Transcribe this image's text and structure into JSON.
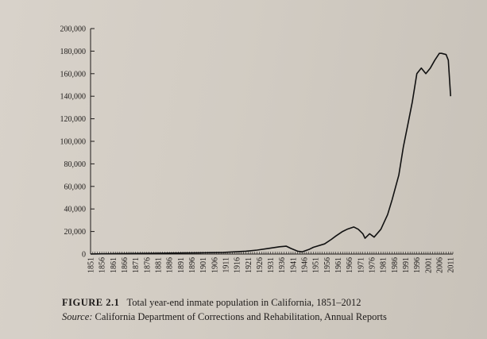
{
  "chart_data": {
    "type": "line",
    "title": "",
    "xlabel": "",
    "ylabel": "",
    "ylim": [
      0,
      200000
    ],
    "xlim": [
      1851,
      2012
    ],
    "grid": false,
    "legend": "none",
    "line_color": "#111111",
    "y_ticks": [
      0,
      20000,
      40000,
      60000,
      80000,
      100000,
      120000,
      140000,
      160000,
      180000,
      200000
    ],
    "y_tick_labels": [
      "0",
      "20,000",
      "40,000",
      "60,000",
      "80,000",
      "100,000",
      "120,000",
      "140,000",
      "160,000",
      "180,000",
      "200,000"
    ],
    "x_tick_labels": [
      "1851",
      "1856",
      "1861",
      "1866",
      "1871",
      "1876",
      "1881",
      "1886",
      "1891",
      "1896",
      "1901",
      "1906",
      "1911",
      "1916",
      "1921",
      "1926",
      "1931",
      "1936",
      "1941",
      "1946",
      "1951",
      "1956",
      "1961",
      "1966",
      "1971",
      "1976",
      "1981",
      "1986",
      "1991",
      "1996",
      "2001",
      "2006",
      "2011"
    ],
    "series": [
      {
        "x": [
          1851,
          1860,
          1870,
          1880,
          1890,
          1900,
          1910,
          1915,
          1920,
          1925,
          1930,
          1935,
          1938,
          1940,
          1943,
          1945,
          1948,
          1950,
          1955,
          1958,
          1960,
          1963,
          1965,
          1968,
          1970,
          1972,
          1973,
          1975,
          1977,
          1980,
          1983,
          1985,
          1988,
          1990,
          1992,
          1994,
          1996,
          1998,
          2000,
          2002,
          2004,
          2006,
          2007,
          2009,
          2010,
          2011
        ],
        "y": [
          100,
          300,
          500,
          700,
          900,
          1100,
          1500,
          2000,
          2500,
          3500,
          5000,
          6500,
          7000,
          5000,
          2500,
          2000,
          4000,
          6000,
          9000,
          13000,
          16000,
          20000,
          22000,
          24000,
          22000,
          18000,
          14000,
          18000,
          15000,
          22000,
          35000,
          48000,
          70000,
          95000,
          115000,
          135000,
          160000,
          165000,
          160000,
          165000,
          172000,
          178000,
          178000,
          177000,
          172000,
          140000
        ]
      }
    ]
  },
  "caption": {
    "figure_label": "FIGURE 2.1",
    "title": "Total year-end inmate population in California, 1851–2012",
    "source_label": "Source:",
    "source_text": "California Department of Corrections and Rehabilitation, Annual Reports"
  }
}
